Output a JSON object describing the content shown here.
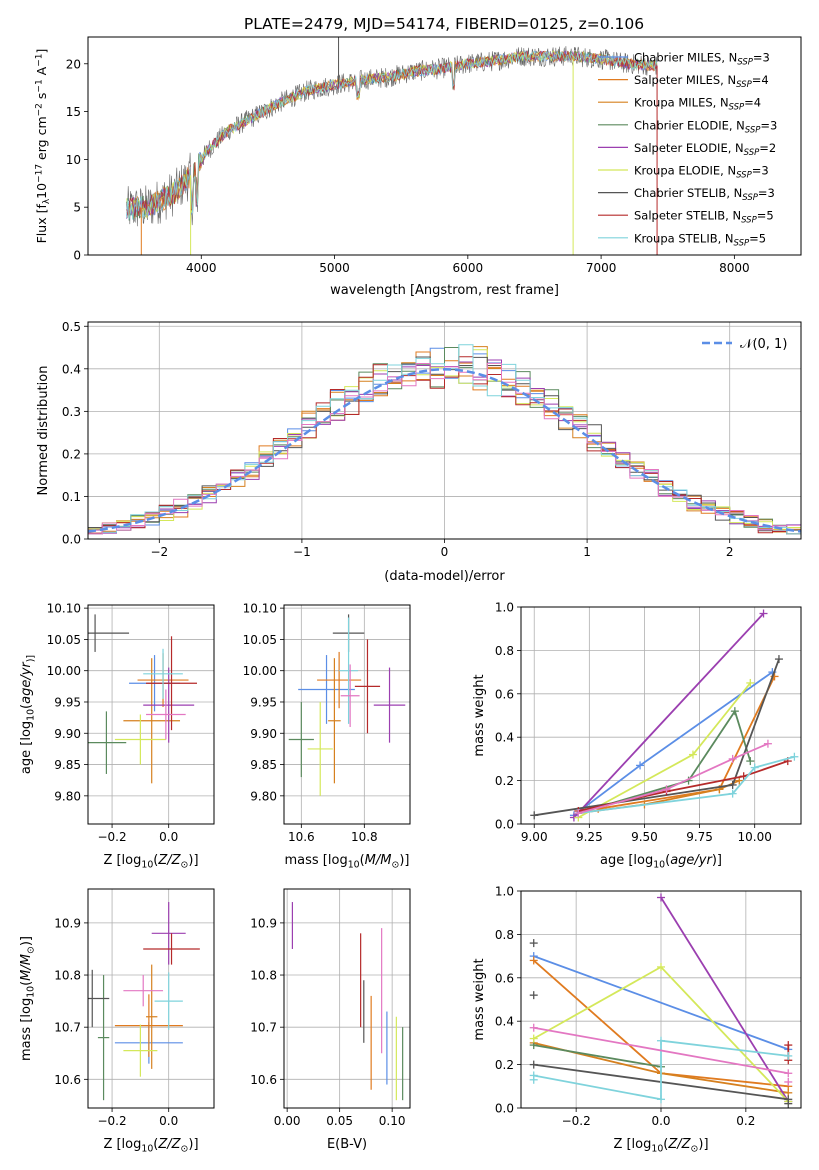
{
  "figure": {
    "title": "PLATE=2479, MJD=54174, FIBERID=0125, z=0.106"
  },
  "chart_data": [
    {
      "id": "spectrum",
      "type": "line",
      "xlabel": "wavelength [Angstrom, rest frame]",
      "ylabel_parts": [
        "Flux [f",
        "λ",
        "10",
        "−17",
        " erg cm",
        "−2",
        " s",
        "−1",
        " A",
        "−1",
        "]"
      ],
      "xlim": [
        3150,
        8500
      ],
      "ylim": [
        0,
        22.8
      ],
      "xticks": [
        4000,
        5000,
        6000,
        7000,
        8000
      ],
      "yticks": [
        0,
        5,
        10,
        15,
        20
      ],
      "grid": false,
      "legend_position": "right",
      "series": [
        {
          "name": "Chabrier MILES",
          "nssp": "3",
          "color": "#5b8ee6"
        },
        {
          "name": "Salpeter MILES",
          "nssp": "4",
          "color": "#e07b20"
        },
        {
          "name": "Kroupa MILES",
          "nssp": "4",
          "color": "#d6801f"
        },
        {
          "name": "Chabrier ELODIE",
          "nssp": "3",
          "color": "#5b8a5e"
        },
        {
          "name": "Salpeter ELODIE",
          "nssp": "2",
          "color": "#9b3fb0"
        },
        {
          "name": "Kroupa ELODIE",
          "nssp": "3",
          "color": "#d4e85a"
        },
        {
          "name": "Chabrier STELIB",
          "nssp": "3",
          "color": "#555555"
        },
        {
          "name": "Salpeter STELIB",
          "nssp": "5",
          "color": "#b52a2a"
        },
        {
          "name": "Kroupa STELIB",
          "nssp": "5",
          "color": "#7fd3dc"
        }
      ],
      "nssp_label": "N",
      "nssp_sub": "SSP",
      "continuum": {
        "x": [
          3450,
          3600,
          3800,
          3950,
          4050,
          4200,
          4400,
          4600,
          4800,
          5000,
          5200,
          5400,
          5600,
          5800,
          6000,
          6200,
          6400,
          6600,
          6800,
          7000,
          7200,
          7400
        ],
        "y": [
          4.8,
          5.0,
          6.5,
          8.8,
          11.0,
          13.0,
          14.5,
          16.0,
          17.2,
          17.8,
          18.3,
          18.6,
          19.2,
          19.5,
          20.0,
          20.3,
          20.8,
          20.8,
          20.8,
          20.5,
          20.0,
          19.8
        ]
      },
      "data_range": [
        3440,
        7420
      ]
    },
    {
      "id": "residuals",
      "type": "histogram",
      "xlabel": "(data-model)/error",
      "ylabel": "Normed distribution",
      "xlim": [
        -2.5,
        2.5
      ],
      "ylim": [
        0,
        0.51
      ],
      "xticks": [
        -2,
        -1,
        0,
        1,
        2
      ],
      "xtick_labels": [
        "−2",
        "−1",
        "0",
        "1",
        "2"
      ],
      "yticks": [
        0.0,
        0.1,
        0.2,
        0.3,
        0.4,
        0.5
      ],
      "ytick_labels": [
        "0.0",
        "0.1",
        "0.2",
        "0.3",
        "0.4",
        "0.5"
      ],
      "grid": true,
      "legend_label": "𝒩(0, 1)",
      "legend_position": "top-right",
      "curve_color": "#5b8ee6"
    },
    {
      "id": "age-vs-z",
      "type": "errorbar",
      "xlabel_parts": [
        "Z [log",
        "10",
        "(",
        "Z/Z",
        "⊙",
        ")]"
      ],
      "ylabel_parts": [
        "age  [log",
        "10",
        "(",
        "age/yr",
        ")]"
      ],
      "xlim": [
        -0.285,
        0.16
      ],
      "ylim": [
        9.755,
        10.105
      ],
      "xticks": [
        -0.2,
        0.0
      ],
      "xtick_labels": [
        "−0.2",
        "0.0"
      ],
      "yticks": [
        9.8,
        9.85,
        9.9,
        9.95,
        10.0,
        10.05,
        10.1
      ],
      "ytick_labels": [
        "9.80",
        "9.85",
        "9.90",
        "9.95",
        "10.00",
        "10.05",
        "10.10"
      ],
      "grid": true,
      "points": [
        {
          "x": -0.05,
          "y": 9.98,
          "xerr": 0.09,
          "yerr": 0.045,
          "color": "#5b8ee6"
        },
        {
          "x": -0.02,
          "y": 9.985,
          "xerr": 0.09,
          "yerr": 0.043,
          "color": "#e07b20"
        },
        {
          "x": -0.06,
          "y": 9.92,
          "xerr": 0.1,
          "yerr": 0.1,
          "color": "#d6801f"
        },
        {
          "x": -0.22,
          "y": 9.885,
          "xerr": 0.07,
          "yerr": 0.05,
          "color": "#5b8a5e"
        },
        {
          "x": 0.0,
          "y": 9.945,
          "xerr": 0.09,
          "yerr": 0.06,
          "color": "#9b3fb0"
        },
        {
          "x": -0.1,
          "y": 9.89,
          "xerr": 0.09,
          "yerr": 0.04,
          "color": "#d4e85a"
        },
        {
          "x": -0.26,
          "y": 10.06,
          "xerr": 0.12,
          "yerr": 0.03,
          "color": "#555555"
        },
        {
          "x": 0.01,
          "y": 9.98,
          "xerr": 0.09,
          "yerr": 0.075,
          "color": "#b52a2a"
        },
        {
          "x": -0.02,
          "y": 9.995,
          "xerr": 0.07,
          "yerr": 0.04,
          "color": "#7fd3dc"
        },
        {
          "x": -0.01,
          "y": 9.93,
          "xerr": 0.07,
          "yerr": 0.04,
          "color": "#e377c2"
        }
      ]
    },
    {
      "id": "age-vs-mass",
      "type": "errorbar",
      "xlabel_parts": [
        "mass [log",
        "10",
        "(",
        "M/M",
        "⊙",
        ")]"
      ],
      "ylabel_parts": [],
      "xlim": [
        10.545,
        10.945
      ],
      "ylim": [
        9.755,
        10.105
      ],
      "xticks": [
        10.6,
        10.8
      ],
      "xtick_labels": [
        "10.6",
        "10.8"
      ],
      "yticks": [
        9.8,
        9.85,
        9.9,
        9.95,
        10.0,
        10.05,
        10.1
      ],
      "ytick_labels": [
        "9.80",
        "9.85",
        "9.90",
        "9.95",
        "10.00",
        "10.05",
        "10.10"
      ],
      "grid": true,
      "points": [
        {
          "x": 10.68,
          "y": 9.97,
          "xerr": 0.09,
          "yerr": 0.055,
          "color": "#5b8ee6"
        },
        {
          "x": 10.72,
          "y": 9.985,
          "xerr": 0.07,
          "yerr": 0.045,
          "color": "#e07b20"
        },
        {
          "x": 10.705,
          "y": 9.92,
          "xerr": 0.02,
          "yerr": 0.1,
          "color": "#d6801f"
        },
        {
          "x": 10.6,
          "y": 9.89,
          "xerr": 0.04,
          "yerr": 0.06,
          "color": "#5b8a5e"
        },
        {
          "x": 10.88,
          "y": 9.945,
          "xerr": 0.05,
          "yerr": 0.06,
          "color": "#9b3fb0"
        },
        {
          "x": 10.66,
          "y": 9.875,
          "xerr": 0.04,
          "yerr": 0.075,
          "color": "#d4e85a"
        },
        {
          "x": 10.75,
          "y": 10.06,
          "xerr": 0.05,
          "yerr": 0.03,
          "color": "#555555"
        },
        {
          "x": 10.81,
          "y": 9.975,
          "xerr": 0.04,
          "yerr": 0.075,
          "color": "#b52a2a"
        },
        {
          "x": 10.75,
          "y": 10.0,
          "xerr": 0.03,
          "yerr": 0.085,
          "color": "#7fd3dc"
        },
        {
          "x": 10.755,
          "y": 9.96,
          "xerr": 0.03,
          "yerr": 0.05,
          "color": "#e377c2"
        }
      ]
    },
    {
      "id": "weight-vs-age",
      "type": "line",
      "xlabel_parts": [
        "age  [log",
        "10",
        "(",
        "age/yr",
        ")]"
      ],
      "ylabel": "mass weight",
      "xlim": [
        8.94,
        10.21
      ],
      "ylim": [
        0,
        1.0
      ],
      "xticks": [
        9.0,
        9.25,
        9.5,
        9.75,
        10.0
      ],
      "xtick_labels": [
        "9.00",
        "9.25",
        "9.50",
        "9.75",
        "10.00"
      ],
      "yticks": [
        0.0,
        0.2,
        0.4,
        0.6,
        0.8,
        1.0
      ],
      "ytick_labels": [
        "0.0",
        "0.2",
        "0.4",
        "0.6",
        "0.8",
        "1.0"
      ],
      "grid": true,
      "series": [
        {
          "color": "#5b8ee6",
          "x": [
            9.18,
            9.48,
            10.08
          ],
          "y": [
            0.04,
            0.27,
            0.7
          ]
        },
        {
          "color": "#e07b20",
          "x": [
            9.29,
            9.84,
            10.09
          ],
          "y": [
            0.07,
            0.16,
            0.68
          ]
        },
        {
          "color": "#d6801f",
          "x": [
            9.2,
            9.5,
            9.84,
            9.93
          ],
          "y": [
            0.05,
            0.09,
            0.16,
            0.2
          ]
        },
        {
          "color": "#5b8a5e",
          "x": [
            9.2,
            9.7,
            9.91,
            9.98
          ],
          "y": [
            0.05,
            0.2,
            0.52,
            0.29
          ]
        },
        {
          "color": "#9b3fb0",
          "x": [
            9.18,
            10.04
          ],
          "y": [
            0.03,
            0.97
          ]
        },
        {
          "color": "#d4e85a",
          "x": [
            9.2,
            9.72,
            9.98
          ],
          "y": [
            0.03,
            0.32,
            0.65
          ]
        },
        {
          "color": "#555555",
          "x": [
            9.0,
            9.9,
            10.11
          ],
          "y": [
            0.04,
            0.18,
            0.76
          ]
        },
        {
          "color": "#b52a2a",
          "x": [
            9.2,
            9.6,
            9.95,
            10.15
          ],
          "y": [
            0.06,
            0.15,
            0.22,
            0.29
          ]
        },
        {
          "color": "#7fd3dc",
          "x": [
            9.2,
            9.9,
            10.0,
            10.18
          ],
          "y": [
            0.05,
            0.14,
            0.26,
            0.31
          ]
        },
        {
          "color": "#e377c2",
          "x": [
            9.2,
            9.6,
            9.9,
            10.06
          ],
          "y": [
            0.05,
            0.16,
            0.3,
            0.37
          ]
        }
      ]
    },
    {
      "id": "mass-vs-z",
      "type": "errorbar",
      "xlabel_parts": [
        "Z [log",
        "10",
        "(",
        "Z/Z",
        "⊙",
        ")]"
      ],
      "ylabel_parts": [
        "mass [log",
        "10",
        "(",
        "M/M",
        "⊙",
        ")]"
      ],
      "xlim": [
        -0.285,
        0.16
      ],
      "ylim": [
        10.545,
        10.965
      ],
      "xticks": [
        -0.2,
        0.0
      ],
      "xtick_labels": [
        "−0.2",
        "0.0"
      ],
      "yticks": [
        10.6,
        10.7,
        10.8,
        10.9
      ],
      "ytick_labels": [
        "10.6",
        "10.7",
        "10.8",
        "10.9"
      ],
      "grid": true,
      "points": [
        {
          "x": -0.07,
          "y": 10.67,
          "xerr": 0.12,
          "yerr": 0.04,
          "color": "#5b8ee6"
        },
        {
          "x": -0.07,
          "y": 10.703,
          "xerr": 0.12,
          "yerr": 0.06,
          "color": "#e07b20"
        },
        {
          "x": -0.06,
          "y": 10.72,
          "xerr": 0.02,
          "yerr": 0.1,
          "color": "#d6801f"
        },
        {
          "x": -0.23,
          "y": 10.68,
          "xerr": 0.02,
          "yerr": 0.12,
          "color": "#5b8a5e"
        },
        {
          "x": 0.0,
          "y": 10.88,
          "xerr": 0.06,
          "yerr": 0.06,
          "color": "#9b3fb0"
        },
        {
          "x": -0.1,
          "y": 10.655,
          "xerr": 0.06,
          "yerr": 0.05,
          "color": "#d4e85a"
        },
        {
          "x": -0.27,
          "y": 10.755,
          "xerr": 0.06,
          "yerr": 0.055,
          "color": "#555555"
        },
        {
          "x": 0.01,
          "y": 10.85,
          "xerr": 0.1,
          "yerr": 0.03,
          "color": "#b52a2a"
        },
        {
          "x": 0.0,
          "y": 10.75,
          "xerr": 0.05,
          "yerr": 0.055,
          "color": "#7fd3dc"
        },
        {
          "x": -0.09,
          "y": 10.77,
          "xerr": 0.07,
          "yerr": 0.03,
          "color": "#e377c2"
        }
      ]
    },
    {
      "id": "mass-vs-ebv",
      "type": "errorbar",
      "xlabel_parts": [
        "E(B-V)"
      ],
      "ylabel_parts": [],
      "xlim": [
        -0.003,
        0.117
      ],
      "ylim": [
        10.545,
        10.965
      ],
      "xticks": [
        0.0,
        0.05,
        0.1
      ],
      "xtick_labels": [
        "0.00",
        "0.05",
        "0.10"
      ],
      "yticks": [
        10.6,
        10.7,
        10.8,
        10.9
      ],
      "ytick_labels": [
        "10.6",
        "10.7",
        "10.8",
        "10.9"
      ],
      "grid": true,
      "points": [
        {
          "x": 0.005,
          "y": 10.895,
          "xerr": 0,
          "yerr": 0.045,
          "color": "#9b3fb0"
        },
        {
          "x": 0.07,
          "y": 10.79,
          "xerr": 0,
          "yerr": 0.09,
          "color": "#b52a2a"
        },
        {
          "x": 0.073,
          "y": 10.73,
          "xerr": 0,
          "yerr": 0.06,
          "color": "#555555"
        },
        {
          "x": 0.08,
          "y": 10.67,
          "xerr": 0,
          "yerr": 0.09,
          "color": "#e07b20"
        },
        {
          "x": 0.09,
          "y": 10.77,
          "xerr": 0,
          "yerr": 0.12,
          "color": "#e377c2"
        },
        {
          "x": 0.095,
          "y": 10.66,
          "xerr": 0,
          "yerr": 0.07,
          "color": "#5b8ee6"
        },
        {
          "x": 0.104,
          "y": 10.64,
          "xerr": 0,
          "yerr": 0.08,
          "color": "#d4e85a"
        },
        {
          "x": 0.11,
          "y": 10.63,
          "xerr": 0,
          "yerr": 0.07,
          "color": "#5b8a5e"
        }
      ]
    },
    {
      "id": "weight-vs-z",
      "type": "line",
      "xlabel_parts": [
        "Z [log",
        "10",
        "(",
        "Z/Z",
        "⊙",
        ")]"
      ],
      "ylabel": "mass weight",
      "xlim": [
        -0.33,
        0.33
      ],
      "ylim": [
        0,
        1.0
      ],
      "xticks": [
        -0.2,
        0.0,
        0.2
      ],
      "xtick_labels": [
        "−0.2",
        "0.0",
        "0.2"
      ],
      "yticks": [
        0.0,
        0.2,
        0.4,
        0.6,
        0.8,
        1.0
      ],
      "ytick_labels": [
        "0.0",
        "0.2",
        "0.4",
        "0.6",
        "0.8",
        "1.0"
      ],
      "grid": true,
      "series": [
        {
          "color": "#5b8ee6",
          "x": [
            -0.3,
            0.3
          ],
          "y": [
            0.7,
            0.27
          ]
        },
        {
          "color": "#e07b20",
          "x": [
            -0.3,
            0.0,
            0.3
          ],
          "y": [
            0.68,
            0.16,
            0.1
          ]
        },
        {
          "color": "#d6801f",
          "x": [
            -0.3,
            0.0,
            0.3
          ],
          "y": [
            0.3,
            0.16,
            0.07
          ]
        },
        {
          "color": "#5b8a5e",
          "x": [
            -0.3,
            0.0
          ],
          "y": [
            0.29,
            0.19
          ]
        },
        {
          "color": "#9b3fb0",
          "x": [
            0.0,
            0.3
          ],
          "y": [
            0.97,
            0.03
          ]
        },
        {
          "color": "#d4e85a",
          "x": [
            -0.3,
            0.0,
            0.3
          ],
          "y": [
            0.32,
            0.65,
            0.03
          ]
        },
        {
          "color": "#555555",
          "x": [
            -0.3,
            0.3
          ],
          "y": [
            0.2,
            0.04
          ]
        },
        {
          "color": "#b52a2a",
          "x": [
            0.3,
            0.3
          ],
          "y": [
            0.29,
            0.22
          ]
        },
        {
          "color": "#7fd3dc",
          "x": [
            -0.3,
            0.0,
            0.0,
            0.3
          ],
          "y": [
            0.15,
            0.04,
            0.31,
            0.24
          ]
        },
        {
          "color": "#e377c2",
          "x": [
            -0.3,
            0.3
          ],
          "y": [
            0.37,
            0.16
          ]
        }
      ],
      "extra_markers": [
        {
          "color": "#555555",
          "x": -0.3,
          "y": 0.76
        },
        {
          "color": "#555555",
          "x": -0.3,
          "y": 0.52
        },
        {
          "color": "#555555",
          "x": 0.3,
          "y": 0.02
        },
        {
          "color": "#7fd3dc",
          "x": -0.3,
          "y": 0.13
        },
        {
          "color": "#e377c2",
          "x": 0.3,
          "y": 0.12
        }
      ]
    }
  ]
}
